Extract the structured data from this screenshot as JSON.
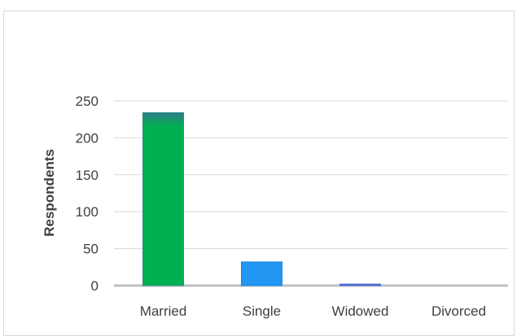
{
  "chart_data": {
    "type": "bar",
    "title": "",
    "xlabel": "",
    "ylabel": "Respondents",
    "categories": [
      "Married",
      "Single",
      "Widowed",
      "Divorced"
    ],
    "values": [
      234,
      32,
      2,
      0
    ],
    "ylim": [
      0,
      250
    ],
    "yticks": [
      0,
      50,
      100,
      150,
      200,
      250
    ],
    "grid": true,
    "legend": "none",
    "colors": {
      "bar_top": "#2a8f82",
      "bar_fill": "#00b050",
      "single_fill": "#2196f3",
      "single_top": "#1a88e0",
      "widowed_fill": "#4f6bd6",
      "grid": "#d9d9d9",
      "axis": "#bfbfbf"
    }
  }
}
